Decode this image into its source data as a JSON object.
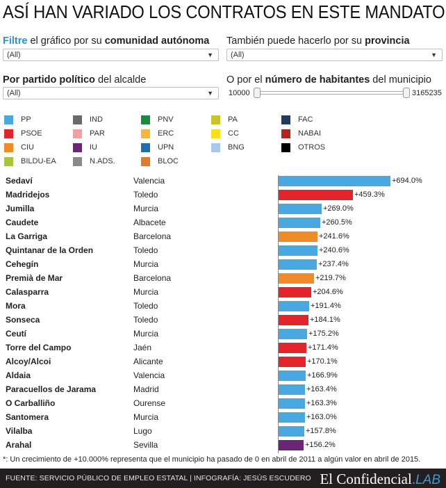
{
  "title": "ASÍ HAN VARIADO LOS CONTRATOS EN ESTE MANDATO",
  "filters": {
    "community": {
      "highlight": "Filtre",
      "pre": " el gráfico por su ",
      "bold": "comunidad autónoma",
      "value": "(All)"
    },
    "province": {
      "pre": "También puede hacerlo por su ",
      "bold": "provincia",
      "value": "(All)"
    },
    "party": {
      "bold": "Por partido político",
      "post": " del alcalde",
      "value": "(All)"
    },
    "population": {
      "pre": "O por el ",
      "bold": "número de habitantes",
      "post": " del municipio",
      "min": "10000",
      "max": "3165235"
    }
  },
  "legend": [
    {
      "label": "PP",
      "color": "#4aa8e0"
    },
    {
      "label": "IND",
      "color": "#6a6a6a"
    },
    {
      "label": "PNV",
      "color": "#1b8a3c"
    },
    {
      "label": "PA",
      "color": "#c9c42a"
    },
    {
      "label": "FAC",
      "color": "#1f3a5f"
    },
    {
      "label": "PSOE",
      "color": "#e3242b"
    },
    {
      "label": "PAR",
      "color": "#f4a0a0"
    },
    {
      "label": "ERC",
      "color": "#f4b740"
    },
    {
      "label": "CC",
      "color": "#f7e11a"
    },
    {
      "label": "NABAI",
      "color": "#b2261f"
    },
    {
      "label": "CIU",
      "color": "#f08c27"
    },
    {
      "label": "IU",
      "color": "#6a2577"
    },
    {
      "label": "UPN",
      "color": "#1f6fb0"
    },
    {
      "label": "BNG",
      "color": "#a9c9ea"
    },
    {
      "label": "OTROS",
      "color": "#000000"
    },
    {
      "label": "BILDU-EA",
      "color": "#a8c43a"
    },
    {
      "label": "N.ADS.",
      "color": "#8a8a8a"
    },
    {
      "label": "BLOC",
      "color": "#e07a2a"
    }
  ],
  "chart_data": {
    "type": "bar",
    "orientation": "horizontal",
    "x_unit": "%",
    "rows": [
      {
        "municipality": "Sedaví",
        "province": "Valencia",
        "party": "PP",
        "value": 694.0,
        "label": "+694.0%"
      },
      {
        "municipality": "Madridejos",
        "province": "Toledo",
        "party": "PSOE",
        "value": 459.3,
        "label": "+459.3%"
      },
      {
        "municipality": "Jumilla",
        "province": "Murcia",
        "party": "PP",
        "value": 269.0,
        "label": "+269.0%"
      },
      {
        "municipality": "Caudete",
        "province": "Albacete",
        "party": "PP",
        "value": 260.5,
        "label": "+260.5%"
      },
      {
        "municipality": "La Garriga",
        "province": "Barcelona",
        "party": "CIU",
        "value": 241.6,
        "label": "+241.6%"
      },
      {
        "municipality": "Quintanar de la Orden",
        "province": "Toledo",
        "party": "PP",
        "value": 240.6,
        "label": "+240.6%"
      },
      {
        "municipality": "Cehegín",
        "province": "Murcia",
        "party": "PP",
        "value": 237.4,
        "label": "+237.4%"
      },
      {
        "municipality": "Premià de Mar",
        "province": "Barcelona",
        "party": "CIU",
        "value": 219.7,
        "label": "+219.7%"
      },
      {
        "municipality": "Calasparra",
        "province": "Murcia",
        "party": "PSOE",
        "value": 204.6,
        "label": "+204.6%"
      },
      {
        "municipality": "Mora",
        "province": "Toledo",
        "party": "PP",
        "value": 191.4,
        "label": "+191.4%"
      },
      {
        "municipality": "Sonseca",
        "province": "Toledo",
        "party": "PSOE",
        "value": 184.1,
        "label": "+184.1%"
      },
      {
        "municipality": "Ceutí",
        "province": "Murcia",
        "party": "PP",
        "value": 175.2,
        "label": "+175.2%"
      },
      {
        "municipality": "Torre del Campo",
        "province": "Jaén",
        "party": "PSOE",
        "value": 171.4,
        "label": "+171.4%"
      },
      {
        "municipality": "Alcoy/Alcoi",
        "province": "Alicante",
        "party": "PSOE",
        "value": 170.1,
        "label": "+170.1%"
      },
      {
        "municipality": "Aldaia",
        "province": "Valencia",
        "party": "PP",
        "value": 166.9,
        "label": "+166.9%"
      },
      {
        "municipality": "Paracuellos de Jarama",
        "province": "Madrid",
        "party": "PP",
        "value": 163.4,
        "label": "+163.4%"
      },
      {
        "municipality": "O Carballiño",
        "province": "Ourense",
        "party": "PP",
        "value": 163.3,
        "label": "+163.3%"
      },
      {
        "municipality": "Santomera",
        "province": "Murcia",
        "party": "PP",
        "value": 163.0,
        "label": "+163.0%"
      },
      {
        "municipality": "Vilalba",
        "province": "Lugo",
        "party": "PP",
        "value": 157.8,
        "label": "+157.8%"
      },
      {
        "municipality": "Arahal",
        "province": "Sevilla",
        "party": "IU",
        "value": 156.2,
        "label": "+156.2%"
      }
    ]
  },
  "footnote": "*: Un crecimiento de +10.000% representa que el municipio ha pasado de 0 en abril de 2011 a algún valor en abril de 2015.",
  "footer": {
    "source": "FUENTE: SERVICIO PÚBLICO DE EMPLEO ESTATAL | INFOGRAFÍA: JESÚS ESCUDERO",
    "brand_main": "El Confidencial",
    "brand_dot": ".",
    "brand_lab": "LAB"
  }
}
